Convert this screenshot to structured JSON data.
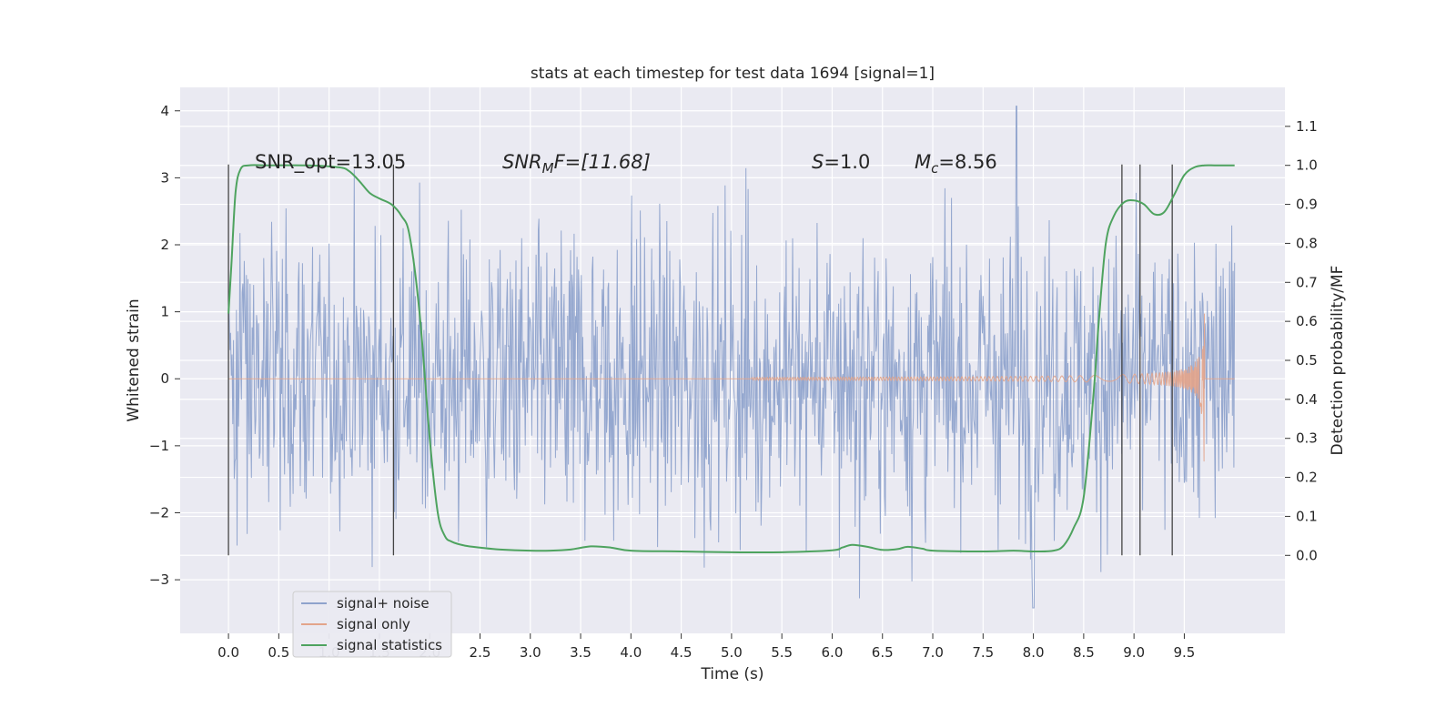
{
  "chart_data": {
    "type": "line",
    "title": "stats at each timestep for test data 1694 [signal=1]",
    "xlabel": "Time (s)",
    "ylabel": "Whitened strain",
    "ylabel_right": "Detection probability/MF",
    "xlim": [
      -0.48,
      10.5
    ],
    "ylim": [
      -3.8,
      4.35
    ],
    "ylim_right": [
      -0.2,
      1.2
    ],
    "x_ticks": [
      "0.0",
      "0.5",
      "1.0",
      "1.5",
      "2.0",
      "2.5",
      "3.0",
      "3.5",
      "4.0",
      "4.5",
      "5.0",
      "5.5",
      "6.0",
      "6.5",
      "7.0",
      "7.5",
      "8.0",
      "8.5",
      "9.0",
      "9.5"
    ],
    "x_tick_values": [
      0,
      0.5,
      1,
      1.5,
      2,
      2.5,
      3,
      3.5,
      4,
      4.5,
      5,
      5.5,
      6,
      6.5,
      7,
      7.5,
      8,
      8.5,
      9,
      9.5
    ],
    "y_ticks": [
      "−3",
      "−2",
      "−1",
      "0",
      "1",
      "2",
      "3",
      "4"
    ],
    "y_tick_values": [
      -3,
      -2,
      -1,
      0,
      1,
      2,
      3,
      4
    ],
    "y_right_ticks": [
      "0.0",
      "0.1",
      "0.2",
      "0.3",
      "0.4",
      "0.5",
      "0.6",
      "0.7",
      "0.8",
      "0.9",
      "1.0",
      "1.1"
    ],
    "y_right_tick_values": [
      0,
      0.1,
      0.2,
      0.3,
      0.4,
      0.5,
      0.6,
      0.7,
      0.8,
      0.9,
      1.0,
      1.1
    ],
    "grid": true,
    "legend_position": "lower-left",
    "annotations": {
      "snr_opt": "SNR_opt=13.05",
      "snr_mf_label": "SNR",
      "snr_mf_sub": "M",
      "snr_mf_suffix": "F=[11.68]",
      "s_label": "S",
      "s_value": "=1.0",
      "mc_label": "M",
      "mc_sub": "c",
      "mc_value": "=8.56"
    },
    "vertical_markers_x": [
      0.0,
      1.64,
      8.88,
      9.06,
      9.38
    ],
    "series": [
      {
        "name": "signal+ noise",
        "color": "#8fa3cc",
        "axis": "left",
        "t_range": [
          0,
          10
        ],
        "spread": 1.1,
        "peak_max": 4.07,
        "peak_min": -3.42
      },
      {
        "name": "signal only",
        "color": "#e3a48a",
        "axis": "left",
        "chirp_start": 5.2,
        "chirp_end": 9.7,
        "peak_amplitude": 1.25
      },
      {
        "name": "signal statistics",
        "color": "#4ea35f",
        "axis": "right",
        "x": [
          0.0,
          0.03,
          0.07,
          0.12,
          0.2,
          0.4,
          0.8,
          1.1,
          1.2,
          1.3,
          1.4,
          1.5,
          1.62,
          1.72,
          1.8,
          1.9,
          2.0,
          2.08,
          2.15,
          2.22,
          2.35,
          2.5,
          2.7,
          3.0,
          3.2,
          3.4,
          3.6,
          3.8,
          4.0,
          4.5,
          5.0,
          5.5,
          6.0,
          6.1,
          6.2,
          6.35,
          6.5,
          6.65,
          6.75,
          6.9,
          7.0,
          7.5,
          7.8,
          8.0,
          8.2,
          8.3,
          8.4,
          8.5,
          8.6,
          8.65,
          8.72,
          8.8,
          8.9,
          9.0,
          9.1,
          9.2,
          9.3,
          9.4,
          9.5,
          9.6,
          9.7,
          9.8,
          9.9,
          10.0
        ],
        "y": [
          0.62,
          0.75,
          0.93,
          0.99,
          1.0,
          1.0,
          1.0,
          0.995,
          0.985,
          0.96,
          0.93,
          0.915,
          0.9,
          0.87,
          0.82,
          0.62,
          0.3,
          0.11,
          0.05,
          0.035,
          0.025,
          0.02,
          0.015,
          0.012,
          0.012,
          0.015,
          0.023,
          0.02,
          0.012,
          0.01,
          0.008,
          0.008,
          0.013,
          0.02,
          0.027,
          0.022,
          0.014,
          0.016,
          0.022,
          0.017,
          0.012,
          0.01,
          0.012,
          0.01,
          0.012,
          0.025,
          0.07,
          0.15,
          0.42,
          0.6,
          0.8,
          0.87,
          0.905,
          0.91,
          0.9,
          0.875,
          0.88,
          0.925,
          0.975,
          0.995,
          1.0,
          1.0,
          1.0,
          1.0
        ]
      }
    ]
  }
}
